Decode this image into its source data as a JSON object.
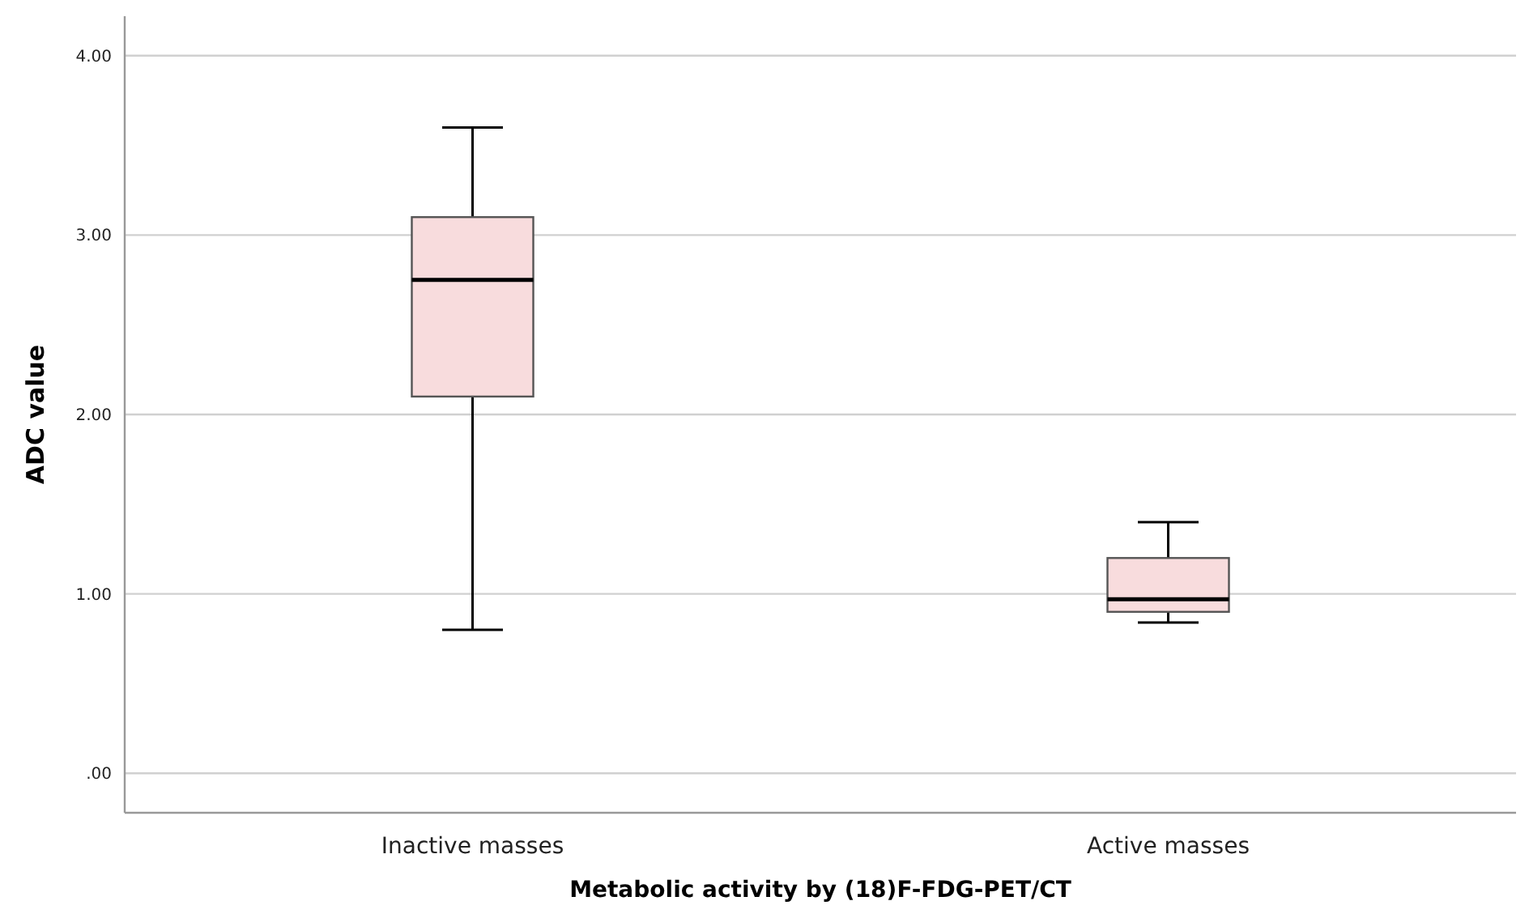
{
  "chart_data": {
    "type": "box",
    "xlabel": "Metabolic activity by (18)F-FDG-PET/CT",
    "ylabel": "ADC value",
    "categories": [
      "Inactive masses",
      "Active masses"
    ],
    "boxes": [
      {
        "low": 0.8,
        "q1": 2.1,
        "median": 2.75,
        "q3": 3.1,
        "high": 3.6
      },
      {
        "low": 0.84,
        "q1": 0.9,
        "median": 0.97,
        "q3": 1.2,
        "high": 1.4
      }
    ],
    "color": "#f8dcdd",
    "ylim": [
      -0.22,
      4.22
    ],
    "yticks": [
      {
        "value": 0,
        "label": ".00"
      },
      {
        "value": 1,
        "label": "1.00"
      },
      {
        "value": 2,
        "label": "2.00"
      },
      {
        "value": 3,
        "label": "3.00"
      },
      {
        "value": 4,
        "label": "4.00"
      }
    ],
    "grid": "y"
  }
}
